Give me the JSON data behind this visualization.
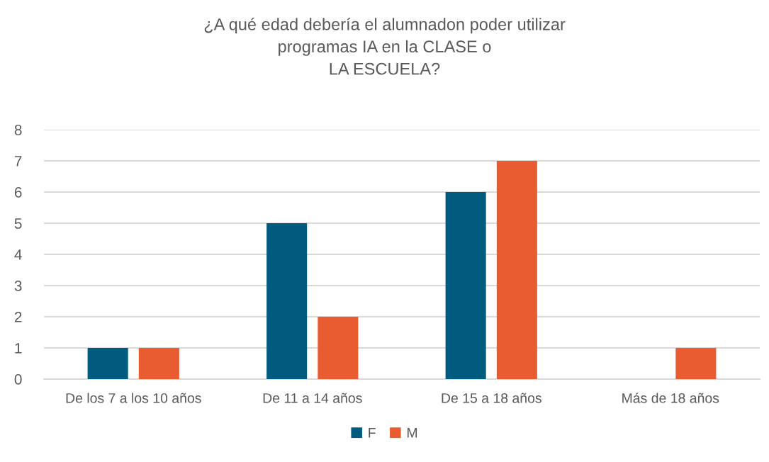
{
  "chart_data": {
    "type": "bar",
    "title": "¿A qué edad debería el alumnadon poder utilizar\nprogramas IA en la CLASE o\nLA ESCUELA?",
    "categories": [
      "De los 7 a los 10 años",
      "De 11 a 14 años",
      "De 15 a 18 años",
      "Más de 18 años"
    ],
    "series": [
      {
        "name": "F",
        "color": "#005b7f",
        "values": [
          1,
          5,
          6,
          null
        ]
      },
      {
        "name": "M",
        "color": "#e95c31",
        "values": [
          1,
          2,
          7,
          1
        ]
      }
    ],
    "ylim": [
      0,
      8
    ],
    "yticks": [
      0,
      1,
      2,
      3,
      4,
      5,
      6,
      7,
      8
    ],
    "grid": "y",
    "legend": "bottom"
  }
}
